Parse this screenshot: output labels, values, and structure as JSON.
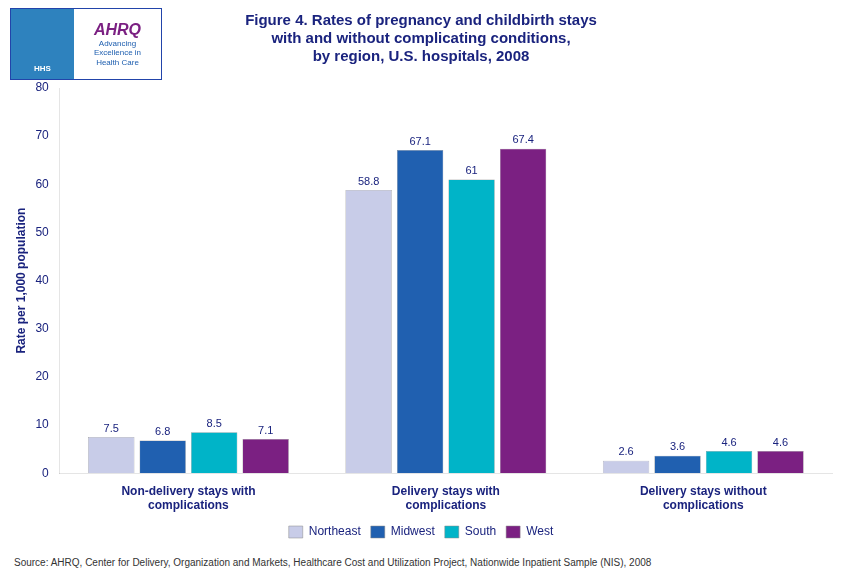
{
  "chart_data": {
    "type": "bar",
    "title": "Figure 4. Rates of pregnancy and childbirth stays\nwith and without complicating conditions,\nby region, U.S. hospitals, 2008",
    "y_label": "Rate per 1,000 population",
    "categories": [
      "Non-delivery stays with\ncomplications",
      "Delivery stays with\ncomplications",
      "Delivery stays without\ncomplications"
    ],
    "series": [
      {
        "name": "Northeast",
        "color": "#c8cce8",
        "values": [
          7.5,
          58.8,
          2.6
        ]
      },
      {
        "name": "Midwest",
        "color": "#2060b0",
        "values": [
          6.8,
          67.1,
          3.6
        ]
      },
      {
        "name": "South",
        "color": "#00b4c8",
        "values": [
          8.5,
          61.0,
          4.6
        ]
      },
      {
        "name": "West",
        "color": "#7b2082",
        "values": [
          7.1,
          67.4,
          4.6
        ]
      }
    ],
    "ylim": [
      0,
      80
    ],
    "yticks": [
      0,
      10,
      20,
      30,
      40,
      50,
      60,
      70,
      80
    ],
    "grid": false,
    "legend": "bottom",
    "data_labels": true,
    "annotations": [
      "Source: AHRQ,  Center for Delivery, Organization and Markets, Healthcare Cost and Utilization Project, Nationwide Inpatient Sample (NIS), 2008",
      "HHS",
      "AHRQ",
      "Advancing\nExcellence in\nHealth Care"
    ]
  }
}
